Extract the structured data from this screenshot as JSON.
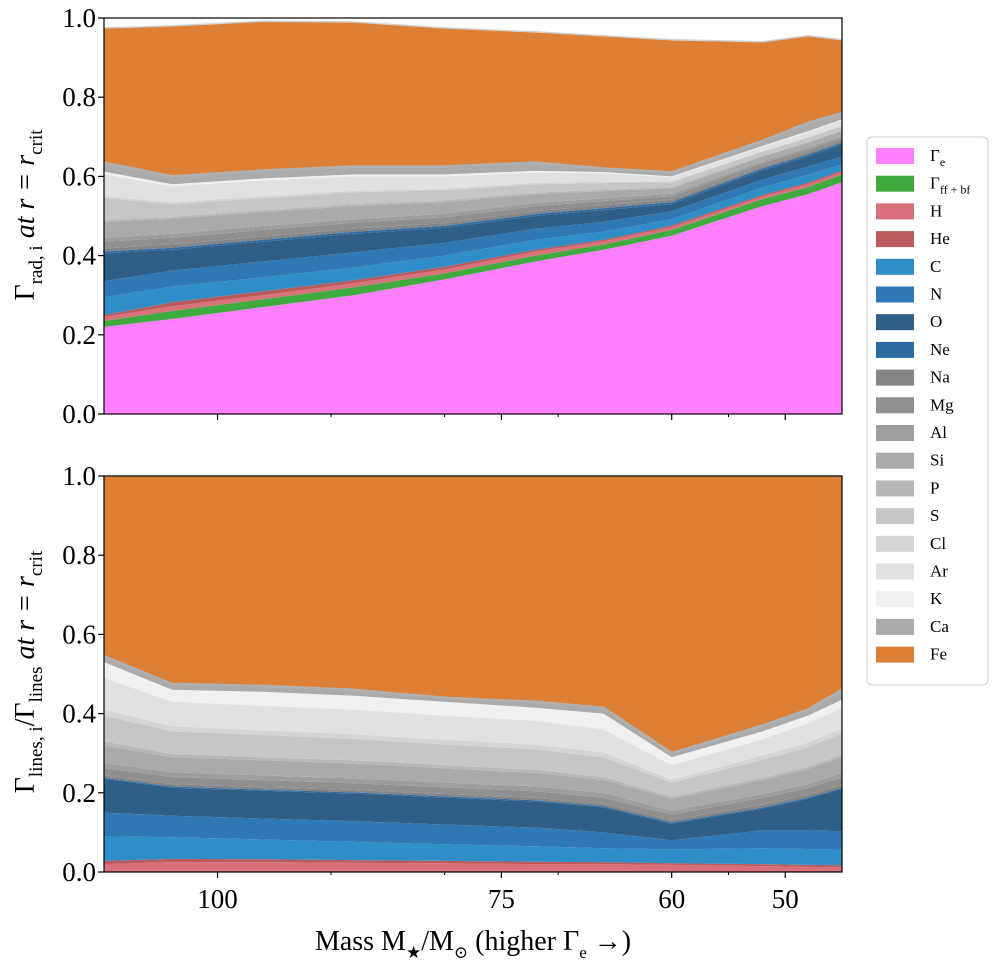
{
  "chart_data": [
    {
      "type": "area",
      "panel": "top",
      "ylabel_main": "Γ",
      "ylabel_sub": "rad, i",
      "ylabel_tail": " at r = r",
      "ylabel_tail_sub": "crit",
      "ylim": [
        0,
        1
      ],
      "yticks": [
        "0.0",
        "0.2",
        "0.4",
        "0.6",
        "0.8",
        "1.0"
      ],
      "x": [
        110,
        104,
        96,
        88,
        80,
        72,
        66,
        60,
        52,
        48,
        45
      ],
      "xlim": [
        110,
        45
      ],
      "cumulative_boundaries": [
        {
          "name": "Γe",
          "values": [
            0.22,
            0.24,
            0.27,
            0.3,
            0.34,
            0.385,
            0.415,
            0.45,
            0.525,
            0.555,
            0.585
          ]
        },
        {
          "name": "Γff+bf",
          "values": [
            0.235,
            0.26,
            0.29,
            0.32,
            0.355,
            0.4,
            0.428,
            0.465,
            0.543,
            0.573,
            0.605
          ]
        },
        {
          "name": "H",
          "values": [
            0.245,
            0.272,
            0.3,
            0.33,
            0.365,
            0.41,
            0.436,
            0.472,
            0.549,
            0.58,
            0.611
          ]
        },
        {
          "name": "He",
          "values": [
            0.25,
            0.282,
            0.31,
            0.338,
            0.372,
            0.415,
            0.44,
            0.476,
            0.553,
            0.584,
            0.615
          ]
        },
        {
          "name": "C",
          "values": [
            0.295,
            0.322,
            0.345,
            0.37,
            0.4,
            0.44,
            0.46,
            0.492,
            0.572,
            0.604,
            0.63
          ]
        },
        {
          "name": "N",
          "values": [
            0.335,
            0.362,
            0.385,
            0.408,
            0.432,
            0.468,
            0.485,
            0.512,
            0.592,
            0.625,
            0.65
          ]
        },
        {
          "name": "O",
          "values": [
            0.405,
            0.415,
            0.435,
            0.455,
            0.47,
            0.5,
            0.515,
            0.53,
            0.615,
            0.65,
            0.68
          ]
        },
        {
          "name": "Ne",
          "values": [
            0.41,
            0.42,
            0.44,
            0.46,
            0.475,
            0.505,
            0.52,
            0.535,
            0.62,
            0.655,
            0.685
          ]
        },
        {
          "name": "Na",
          "values": [
            0.418,
            0.428,
            0.448,
            0.468,
            0.482,
            0.512,
            0.527,
            0.541,
            0.625,
            0.66,
            0.69
          ]
        },
        {
          "name": "Mg",
          "values": [
            0.435,
            0.445,
            0.465,
            0.483,
            0.497,
            0.525,
            0.538,
            0.55,
            0.633,
            0.667,
            0.697
          ]
        },
        {
          "name": "Al",
          "values": [
            0.445,
            0.455,
            0.475,
            0.492,
            0.506,
            0.533,
            0.545,
            0.556,
            0.638,
            0.672,
            0.702
          ]
        },
        {
          "name": "Si",
          "values": [
            0.485,
            0.493,
            0.51,
            0.525,
            0.535,
            0.555,
            0.563,
            0.57,
            0.65,
            0.685,
            0.715
          ]
        },
        {
          "name": "P",
          "values": [
            0.49,
            0.498,
            0.515,
            0.53,
            0.54,
            0.559,
            0.567,
            0.573,
            0.652,
            0.687,
            0.717
          ]
        },
        {
          "name": "S",
          "values": [
            0.545,
            0.53,
            0.545,
            0.56,
            0.565,
            0.58,
            0.583,
            0.585,
            0.662,
            0.697,
            0.727
          ]
        },
        {
          "name": "Cl",
          "values": [
            0.55,
            0.535,
            0.55,
            0.564,
            0.569,
            0.584,
            0.586,
            0.588,
            0.664,
            0.699,
            0.729
          ]
        },
        {
          "name": "Ar",
          "values": [
            0.605,
            0.575,
            0.59,
            0.6,
            0.6,
            0.61,
            0.608,
            0.598,
            0.675,
            0.712,
            0.742
          ]
        },
        {
          "name": "K",
          "values": [
            0.612,
            0.58,
            0.595,
            0.605,
            0.605,
            0.614,
            0.611,
            0.6,
            0.677,
            0.714,
            0.744
          ]
        },
        {
          "name": "Ca",
          "values": [
            0.635,
            0.6,
            0.615,
            0.625,
            0.625,
            0.635,
            0.62,
            0.61,
            0.69,
            0.735,
            0.76
          ]
        },
        {
          "name": "Fe",
          "values": [
            0.975,
            0.98,
            0.992,
            0.99,
            0.975,
            0.965,
            0.955,
            0.945,
            0.94,
            0.955,
            0.945
          ]
        }
      ]
    },
    {
      "type": "area",
      "panel": "bottom",
      "ylabel_main": "Γ",
      "ylabel_sub": "lines, i",
      "ylabel_mid": "/Γ",
      "ylabel_mid_sub": "lines",
      "ylabel_tail": " at r = r",
      "ylabel_tail_sub": "crit",
      "ylim": [
        0,
        1
      ],
      "yticks": [
        "0.0",
        "0.2",
        "0.4",
        "0.6",
        "0.8",
        "1.0"
      ],
      "xticks": [
        "100",
        "75",
        "60",
        "50"
      ],
      "xtick_values": [
        100,
        75,
        60,
        50
      ],
      "xlabel": "Mass M",
      "xlabel_star": "★",
      "xlabel_mid": "/M",
      "xlabel_sun": "⊙",
      "xlabel_tail": " (higher Γ",
      "xlabel_tail_sub": "e",
      "xlabel_arrow": " →)",
      "x": [
        110,
        104,
        96,
        88,
        80,
        72,
        66,
        60,
        52,
        48,
        45
      ],
      "xlim": [
        110,
        45
      ],
      "cumulative_boundaries": [
        {
          "name": "Γe",
          "values": [
            0.0,
            0.0,
            0.0,
            0.0,
            0.0,
            0.0,
            0.0,
            0.0,
            0.0,
            0.0,
            0.0
          ]
        },
        {
          "name": "Γff+bf",
          "values": [
            0.0,
            0.0,
            0.0,
            0.0,
            0.0,
            0.0,
            0.0,
            0.0,
            0.0,
            0.0,
            0.0
          ]
        },
        {
          "name": "H",
          "values": [
            0.02,
            0.025,
            0.025,
            0.023,
            0.022,
            0.02,
            0.02,
            0.018,
            0.015,
            0.013,
            0.012
          ]
        },
        {
          "name": "He",
          "values": [
            0.028,
            0.033,
            0.032,
            0.03,
            0.028,
            0.026,
            0.025,
            0.022,
            0.02,
            0.018,
            0.017
          ]
        },
        {
          "name": "C",
          "values": [
            0.09,
            0.088,
            0.082,
            0.076,
            0.07,
            0.065,
            0.06,
            0.057,
            0.06,
            0.058,
            0.055
          ]
        },
        {
          "name": "N",
          "values": [
            0.15,
            0.142,
            0.135,
            0.128,
            0.12,
            0.112,
            0.1,
            0.08,
            0.105,
            0.105,
            0.103
          ]
        },
        {
          "name": "O",
          "values": [
            0.235,
            0.213,
            0.205,
            0.198,
            0.188,
            0.178,
            0.163,
            0.122,
            0.16,
            0.185,
            0.21
          ]
        },
        {
          "name": "Ne",
          "values": [
            0.238,
            0.216,
            0.208,
            0.201,
            0.191,
            0.181,
            0.166,
            0.125,
            0.163,
            0.188,
            0.213
          ]
        },
        {
          "name": "Na",
          "values": [
            0.244,
            0.222,
            0.214,
            0.207,
            0.197,
            0.187,
            0.172,
            0.131,
            0.17,
            0.195,
            0.22
          ]
        },
        {
          "name": "Mg",
          "values": [
            0.262,
            0.24,
            0.232,
            0.224,
            0.214,
            0.204,
            0.188,
            0.145,
            0.187,
            0.212,
            0.238
          ]
        },
        {
          "name": "Al",
          "values": [
            0.275,
            0.252,
            0.244,
            0.236,
            0.226,
            0.216,
            0.2,
            0.155,
            0.197,
            0.222,
            0.25
          ]
        },
        {
          "name": "Si",
          "values": [
            0.32,
            0.29,
            0.282,
            0.274,
            0.262,
            0.25,
            0.233,
            0.185,
            0.232,
            0.26,
            0.29
          ]
        },
        {
          "name": "P",
          "values": [
            0.33,
            0.298,
            0.29,
            0.282,
            0.27,
            0.258,
            0.24,
            0.19,
            0.238,
            0.266,
            0.296
          ]
        },
        {
          "name": "S",
          "values": [
            0.395,
            0.355,
            0.346,
            0.336,
            0.322,
            0.31,
            0.29,
            0.225,
            0.283,
            0.315,
            0.35
          ]
        },
        {
          "name": "Cl",
          "values": [
            0.41,
            0.368,
            0.358,
            0.348,
            0.334,
            0.322,
            0.302,
            0.233,
            0.294,
            0.327,
            0.362
          ]
        },
        {
          "name": "Ar",
          "values": [
            0.49,
            0.43,
            0.42,
            0.41,
            0.395,
            0.382,
            0.36,
            0.27,
            0.335,
            0.375,
            0.415
          ]
        },
        {
          "name": "K",
          "values": [
            0.53,
            0.46,
            0.455,
            0.445,
            0.43,
            0.415,
            0.4,
            0.29,
            0.355,
            0.395,
            0.435
          ]
        },
        {
          "name": "Ca",
          "values": [
            0.545,
            0.475,
            0.47,
            0.46,
            0.44,
            0.43,
            0.415,
            0.3,
            0.37,
            0.41,
            0.46
          ]
        },
        {
          "name": "Fe",
          "values": [
            1.0,
            1.0,
            1.0,
            1.0,
            1.0,
            1.0,
            1.0,
            1.0,
            1.0,
            1.0,
            1.0
          ]
        }
      ]
    }
  ],
  "legend": [
    {
      "label": "Γ",
      "sub": "e",
      "color": "#ff80ff"
    },
    {
      "label": "Γ",
      "sub": "ff + bf",
      "color": "#3fab3f"
    },
    {
      "label": "H",
      "sub": "",
      "color": "#d7707a"
    },
    {
      "label": "He",
      "sub": "",
      "color": "#bb5a5a"
    },
    {
      "label": "C",
      "sub": "",
      "color": "#2f8dc8"
    },
    {
      "label": "N",
      "sub": "",
      "color": "#2f78b3"
    },
    {
      "label": "O",
      "sub": "",
      "color": "#2f5f86"
    },
    {
      "label": "Ne",
      "sub": "",
      "color": "#2e6ba4"
    },
    {
      "label": "Na",
      "sub": "",
      "color": "#858585"
    },
    {
      "label": "Mg",
      "sub": "",
      "color": "#909090"
    },
    {
      "label": "Al",
      "sub": "",
      "color": "#9d9d9d"
    },
    {
      "label": "Si",
      "sub": "",
      "color": "#aaaaaa"
    },
    {
      "label": "P",
      "sub": "",
      "color": "#b7b7b7"
    },
    {
      "label": "S",
      "sub": "",
      "color": "#c6c6c6"
    },
    {
      "label": "Cl",
      "sub": "",
      "color": "#d4d4d4"
    },
    {
      "label": "Ar",
      "sub": "",
      "color": "#e1e1e1"
    },
    {
      "label": "K",
      "sub": "",
      "color": "#f0f0f0"
    },
    {
      "label": "Ca",
      "sub": "",
      "color": "#ababab"
    },
    {
      "label": "Fe",
      "sub": "",
      "color": "#dd7f34"
    }
  ]
}
